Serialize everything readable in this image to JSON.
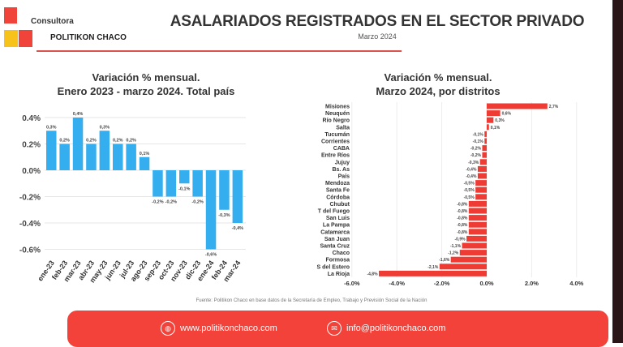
{
  "header": {
    "logo_line1": "Consultora",
    "logo_line2": "POLITIKON CHACO",
    "title": "ASALARIADOS REGISTRADOS EN EL SECTOR PRIVADO",
    "subtitle": "Marzo 2024"
  },
  "colors": {
    "logo_red": "#f0433a",
    "logo_yellow": "#f7c21a",
    "bar_blue": "#35aef0",
    "bar_red": "#ee3b33",
    "accent": "#f2423a"
  },
  "footer": {
    "source": "Fuente: Politikon Chaco en base datos de la Secretaría de Empleo, Trabajo y Previsión Social de la Nación",
    "website": "www.politikonchaco.com",
    "email": "info@politikonchaco.com",
    "website_icon": "globe-icon",
    "email_icon": "mail-icon"
  },
  "chart_data": [
    {
      "type": "bar",
      "title_line1": "Variación % mensual.",
      "title_line2": "Enero 2023 - marzo 2024. Total país",
      "categories": [
        "ene-23",
        "feb-23",
        "mar-23",
        "abr-23",
        "may-23",
        "jun-23",
        "jul-23",
        "ago-23",
        "sep-23",
        "oct-23",
        "nov-23",
        "dic-23",
        "ene-24",
        "feb-24",
        "mar-24"
      ],
      "values": [
        0.3,
        0.2,
        0.4,
        0.2,
        0.3,
        0.2,
        0.2,
        0.1,
        -0.2,
        -0.2,
        -0.1,
        -0.2,
        -0.6,
        -0.3,
        -0.4
      ],
      "labels": [
        "0,3%",
        "0,2%",
        "0,4%",
        "0,2%",
        "0,3%",
        "0,2%",
        "0,2%",
        "0,1%",
        "-0,2%",
        "-0,2%",
        "-0,1%",
        "-0,2%",
        "-0,6%",
        "-0,3%",
        "-0,4%"
      ],
      "ylim": [
        -0.6,
        0.4
      ],
      "yticks": [
        0.4,
        0.2,
        0.0,
        -0.2,
        -0.4,
        -0.6
      ],
      "ytick_labels": [
        "0.4%",
        "0.2%",
        "0.0%",
        "-0.2%",
        "-0.4%",
        "-0.6%"
      ],
      "grid": true
    },
    {
      "type": "bar",
      "orientation": "horizontal",
      "title_line1": "Variación % mensual.",
      "title_line2": "Marzo 2024, por distritos",
      "categories": [
        "Misiones",
        "Neuquén",
        "Río Negro",
        "Salta",
        "Tucumán",
        "Corrientes",
        "CABA",
        "Entre Ríos",
        "Jujuy",
        "Bs. As",
        "País",
        "Mendoza",
        "Santa Fe",
        "Córdoba",
        "Chubut",
        "T del Fuego",
        "San Luis",
        "La Pampa",
        "Catamarca",
        "San Juan",
        "Santa Cruz",
        "Chaco",
        "Formosa",
        "S del Estero",
        "La Rioja"
      ],
      "values": [
        2.7,
        0.6,
        0.3,
        0.1,
        -0.1,
        -0.1,
        -0.2,
        -0.2,
        -0.3,
        -0.4,
        -0.4,
        -0.5,
        -0.5,
        -0.5,
        -0.8,
        -0.8,
        -0.8,
        -0.8,
        -0.8,
        -0.9,
        -1.1,
        -1.2,
        -1.6,
        -2.1,
        -4.8
      ],
      "labels": [
        "2,7%",
        "0,6%",
        "0,3%",
        "0,1%",
        "-0,1%",
        "-0,1%",
        "-0,2%",
        "-0,2%",
        "-0,3%",
        "-0,4%",
        "-0,4%",
        "-0,5%",
        "-0,5%",
        "-0,5%",
        "-0,8%",
        "-0,8%",
        "-0,8%",
        "-0,8%",
        "-0,8%",
        "-0,9%",
        "-1,1%",
        "-1,2%",
        "-1,6%",
        "-2,1%",
        "-4,8%"
      ],
      "xlim": [
        -6,
        4
      ],
      "xticks": [
        -6,
        -4,
        -2,
        0,
        2,
        4
      ],
      "xtick_labels": [
        "-6.0%",
        "-4.0%",
        "-2.0%",
        "0.0%",
        "2.0%",
        "4.0%"
      ],
      "grid": true
    }
  ]
}
